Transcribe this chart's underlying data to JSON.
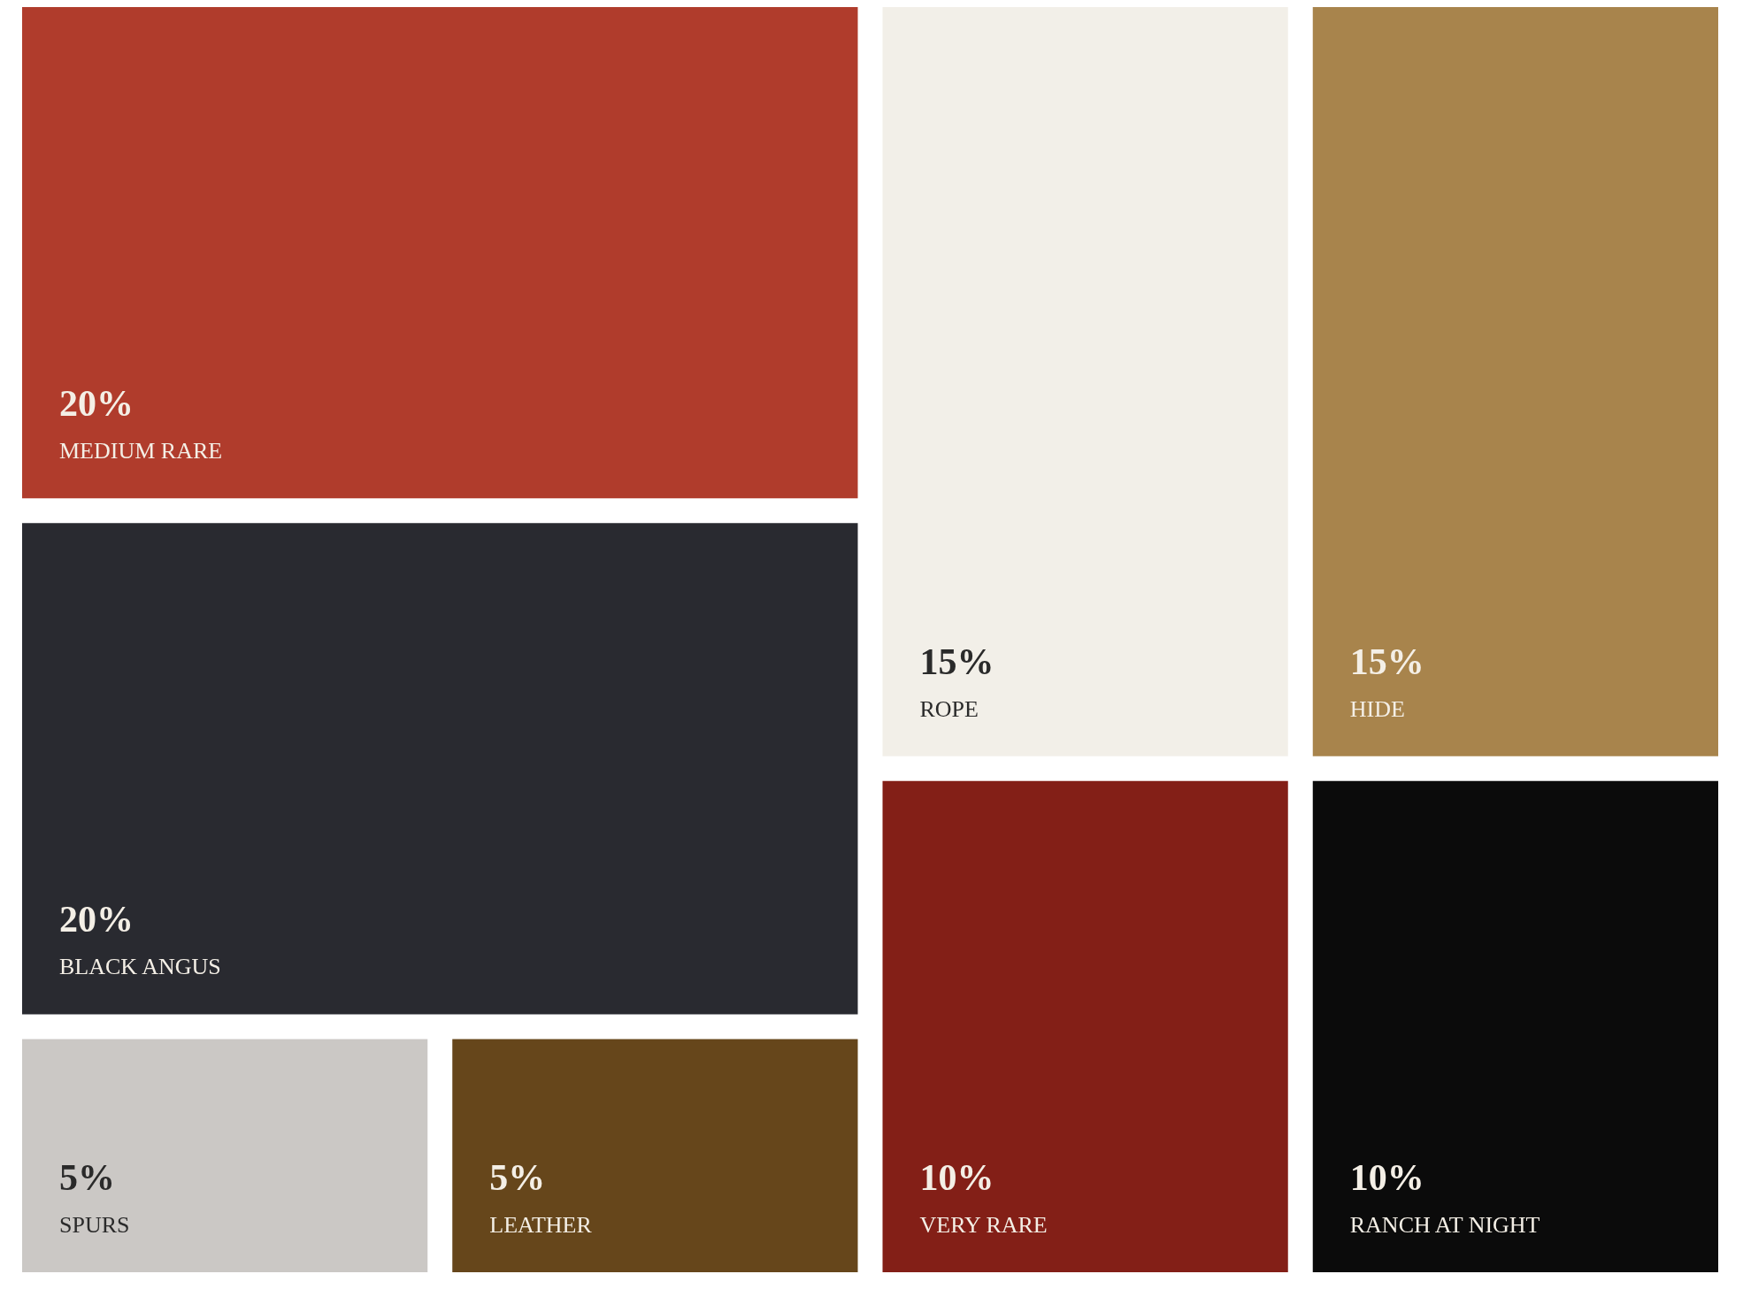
{
  "chart_data": {
    "type": "other",
    "categories": [
      "MEDIUM RARE",
      "BLACK ANGUS",
      "SPURS",
      "LEATHER",
      "ROPE",
      "HIDE",
      "VERY RARE",
      "RANCH AT NIGHT"
    ],
    "values": [
      20,
      20,
      5,
      5,
      15,
      15,
      10,
      10
    ],
    "value_labels": [
      "20%",
      "20%",
      "5%",
      "5%",
      "15%",
      "15%",
      "10%",
      "10%"
    ],
    "colors": [
      "#b03c2c",
      "#292a30",
      "#cbc8c5",
      "#66461b",
      "#f2efe8",
      "#a8844c",
      "#831f17",
      "#0b0b0b"
    ]
  }
}
